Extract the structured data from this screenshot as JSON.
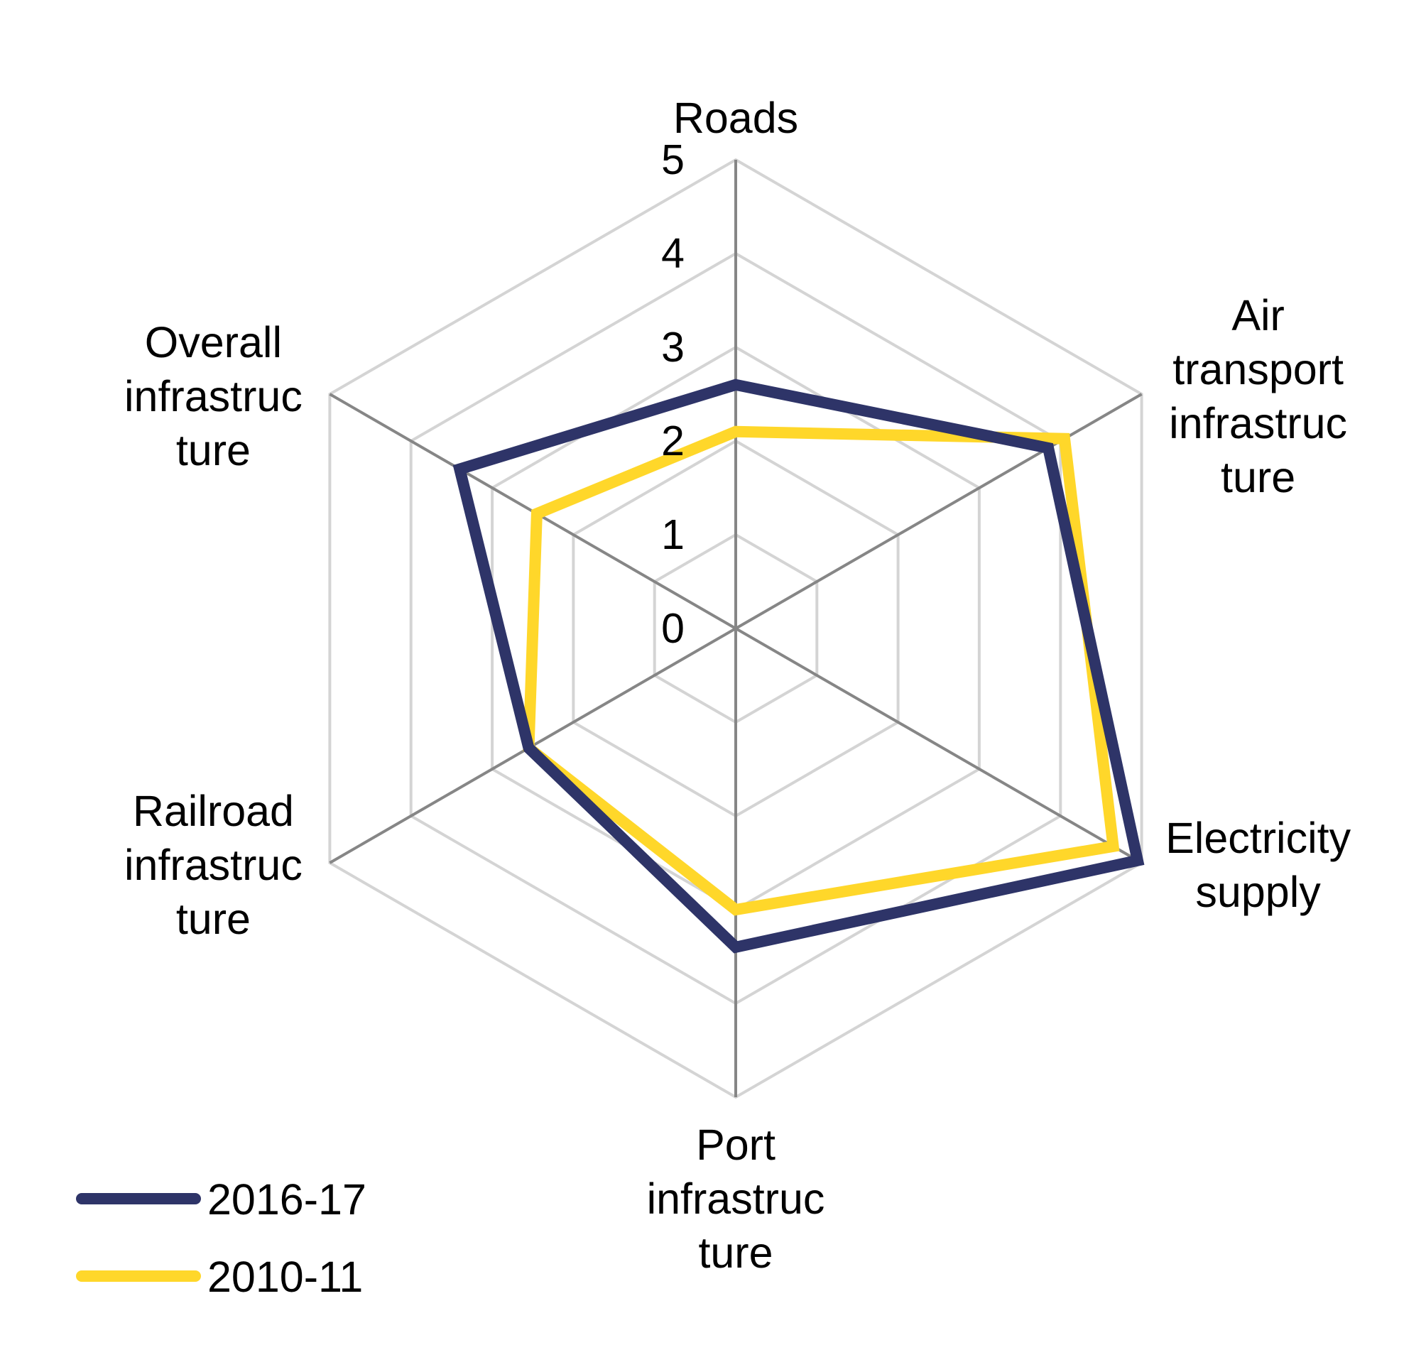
{
  "chart_data": {
    "type": "radar",
    "title": "",
    "axes": [
      {
        "name": "Roads",
        "label_lines": [
          "Roads"
        ]
      },
      {
        "name": "Air transport infrastructure",
        "label_lines": [
          "Air",
          "transport",
          "infrastruc",
          "ture"
        ]
      },
      {
        "name": "Electricity supply",
        "label_lines": [
          "Electricity",
          "supply"
        ]
      },
      {
        "name": "Port infrastructure",
        "label_lines": [
          "Port",
          "infrastruc",
          "ture"
        ]
      },
      {
        "name": "Railroad infrastructure",
        "label_lines": [
          "Railroad",
          "infrastruc",
          "ture"
        ]
      },
      {
        "name": "Overall infrastructure",
        "label_lines": [
          "Overall",
          "infrastruc",
          "ture"
        ]
      }
    ],
    "range": [
      0,
      5
    ],
    "ticks": [
      "0",
      "1",
      "2",
      "3",
      "4",
      "5"
    ],
    "grid": true,
    "legend_position": "bottom-left",
    "series": [
      {
        "name": "2016-17",
        "color": "#2E3468",
        "values": [
          2.6,
          3.85,
          4.95,
          3.4,
          2.55,
          3.4
        ]
      },
      {
        "name": "2010-11",
        "color": "#FFD72A",
        "values": [
          2.1,
          4.05,
          4.65,
          3.0,
          2.55,
          2.45
        ]
      }
    ]
  }
}
